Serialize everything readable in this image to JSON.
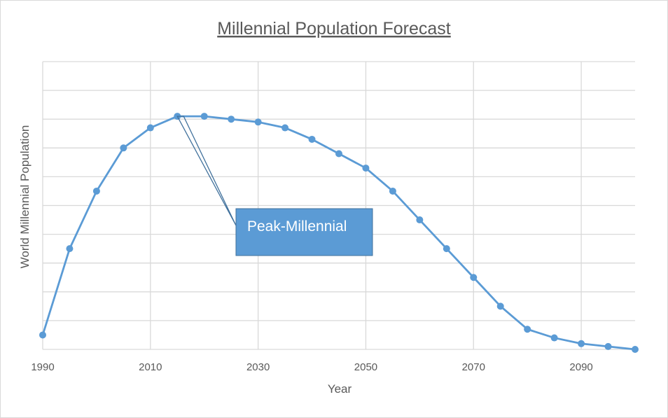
{
  "chart_data": {
    "type": "line",
    "title": "Millennial Population Forecast",
    "xlabel": "Year",
    "ylabel": "World Millennial Population",
    "xlim": [
      1990,
      2100
    ],
    "ylim": [
      0,
      10
    ],
    "x_ticks": [
      1990,
      2010,
      2030,
      2050,
      2070,
      2090
    ],
    "grid": true,
    "legend": "none",
    "colors": {
      "line": "#5b9bd5",
      "grid": "#d9d9d9",
      "text": "#595959",
      "callout_fill": "#5b9bd5",
      "callout_border": "#41719c"
    },
    "series": [
      {
        "x": [
          1990,
          1995,
          2000,
          2005,
          2010,
          2015,
          2020,
          2025,
          2030,
          2035,
          2040,
          2045,
          2050,
          2055,
          2060,
          2065,
          2070,
          2075,
          2080,
          2085,
          2090,
          2095,
          2100
        ],
        "values": [
          0.5,
          3.5,
          5.5,
          7.0,
          7.7,
          8.1,
          8.1,
          8.0,
          7.9,
          7.7,
          7.3,
          6.8,
          6.3,
          5.5,
          4.5,
          3.5,
          2.5,
          1.5,
          0.7,
          0.4,
          0.2,
          0.1,
          0.0
        ]
      }
    ],
    "annotations": [
      {
        "text": "Peak-Millennial",
        "x": 2015,
        "y": 8.1
      }
    ]
  }
}
